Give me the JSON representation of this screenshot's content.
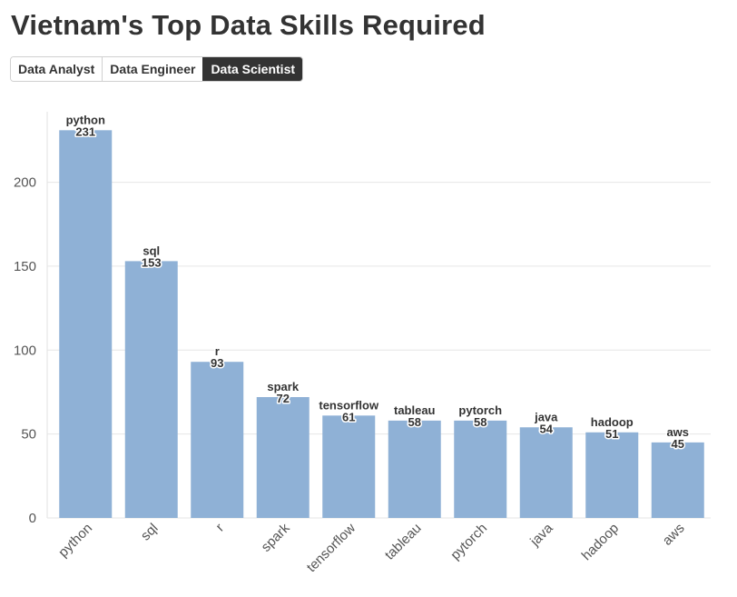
{
  "page": {
    "title": "Vietnam's Top Data Skills Required"
  },
  "tabs": [
    {
      "label": "Data Analyst",
      "active": false
    },
    {
      "label": "Data Engineer",
      "active": false
    },
    {
      "label": "Data Scientist",
      "active": true
    }
  ],
  "colors": {
    "bar": "#8fb1d6",
    "grid": "#e6e6e6",
    "active_tab": "#333333"
  },
  "chart_data": {
    "type": "bar",
    "categories": [
      "python",
      "sql",
      "r",
      "spark",
      "tensorflow",
      "tableau",
      "pytorch",
      "java",
      "hadoop",
      "aws"
    ],
    "values": [
      231,
      153,
      93,
      72,
      61,
      58,
      58,
      54,
      51,
      45
    ],
    "ylim": [
      0,
      240
    ],
    "yticks": [
      0,
      50,
      100,
      150,
      200
    ],
    "grid": true,
    "xtick_rotation": -45,
    "data_labels": true
  }
}
